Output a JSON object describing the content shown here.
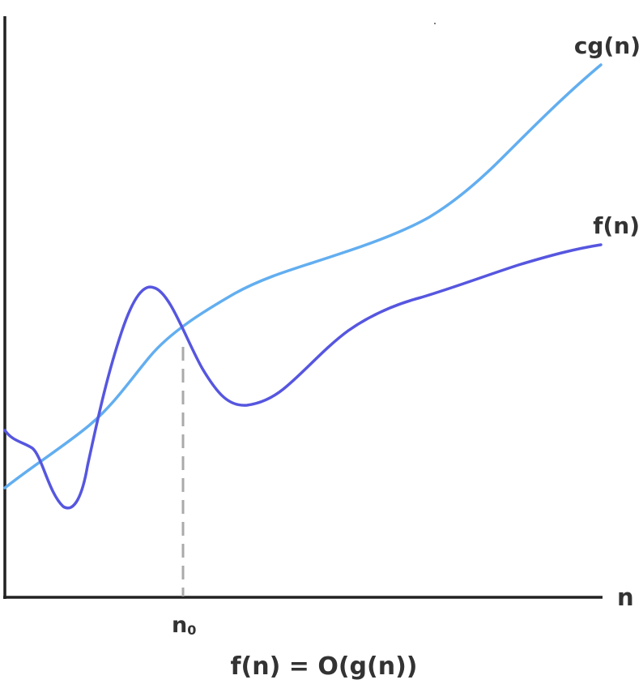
{
  "labels": {
    "cg_curve": "cg(n)",
    "f_curve": "f(n)",
    "x_axis": "n",
    "n0_main": "n",
    "n0_sub": "0",
    "caption": "f(n) = O(g(n))"
  },
  "colors": {
    "axis": "#222222",
    "cg_curve": "#62AEF0",
    "f_curve": "#5656E0",
    "n0_marker": "#AAAAAA",
    "text": "#333333"
  }
}
